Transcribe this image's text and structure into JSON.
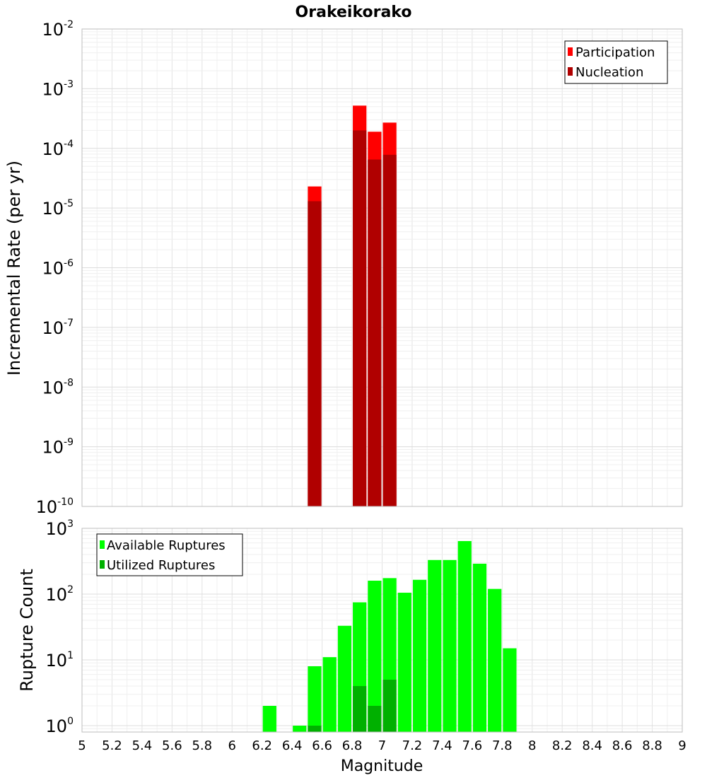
{
  "title": "Orakeikorako",
  "xlabel": "Magnitude",
  "chart_data": [
    {
      "type": "bar",
      "ylabel": "Incremental Rate (per yr)",
      "yscale": "log",
      "ylim": [
        1e-10,
        0.01
      ],
      "xlim": [
        5,
        9
      ],
      "bin_width": 0.1,
      "legend": "top-right",
      "grid": true,
      "series": [
        {
          "name": "Participation",
          "color": "#ff0000",
          "x": [
            6.55,
            6.85,
            6.95,
            7.05
          ],
          "values": [
            2.3e-05,
            0.00052,
            0.00019,
            0.00027
          ]
        },
        {
          "name": "Nucleation",
          "color": "#b00000",
          "x": [
            6.55,
            6.85,
            6.95,
            7.05
          ],
          "values": [
            1.3e-05,
            0.0002,
            6.5e-05,
            7.8e-05
          ]
        }
      ],
      "yticks": [
        {
          "base": "10",
          "exp": "-2"
        },
        {
          "base": "10",
          "exp": "-3"
        },
        {
          "base": "10",
          "exp": "-4"
        },
        {
          "base": "10",
          "exp": "-5"
        },
        {
          "base": "10",
          "exp": "-6"
        },
        {
          "base": "10",
          "exp": "-7"
        },
        {
          "base": "10",
          "exp": "-8"
        },
        {
          "base": "10",
          "exp": "-9"
        },
        {
          "base": "10",
          "exp": "-10"
        }
      ]
    },
    {
      "type": "bar",
      "ylabel": "Rupture Count",
      "yscale": "log",
      "ylim": [
        0.8,
        1000
      ],
      "xlim": [
        5,
        9
      ],
      "bin_width": 0.1,
      "legend": "top-left",
      "grid": true,
      "series": [
        {
          "name": "Available Ruptures",
          "color": "#00ff00",
          "x": [
            6.25,
            6.45,
            6.55,
            6.65,
            6.75,
            6.85,
            6.95,
            7.05,
            7.15,
            7.25,
            7.35,
            7.45,
            7.55,
            7.65,
            7.75,
            7.85
          ],
          "values": [
            2,
            1,
            8,
            11,
            33,
            75,
            160,
            175,
            105,
            165,
            330,
            330,
            640,
            290,
            120,
            15
          ]
        },
        {
          "name": "Utilized Ruptures",
          "color": "#00b000",
          "x": [
            6.55,
            6.85,
            6.95,
            7.05
          ],
          "values": [
            1,
            4,
            2,
            5
          ]
        }
      ],
      "yticks": [
        {
          "base": "10",
          "exp": "3"
        },
        {
          "base": "10",
          "exp": "2"
        },
        {
          "base": "10",
          "exp": "1"
        },
        {
          "base": "10",
          "exp": "0"
        }
      ]
    }
  ],
  "xticks": [
    "5",
    "5.2",
    "5.4",
    "5.6",
    "5.8",
    "6",
    "6.2",
    "6.4",
    "6.6",
    "6.8",
    "7",
    "7.2",
    "7.4",
    "7.6",
    "7.8",
    "8",
    "8.2",
    "8.4",
    "8.6",
    "8.8",
    "9"
  ]
}
